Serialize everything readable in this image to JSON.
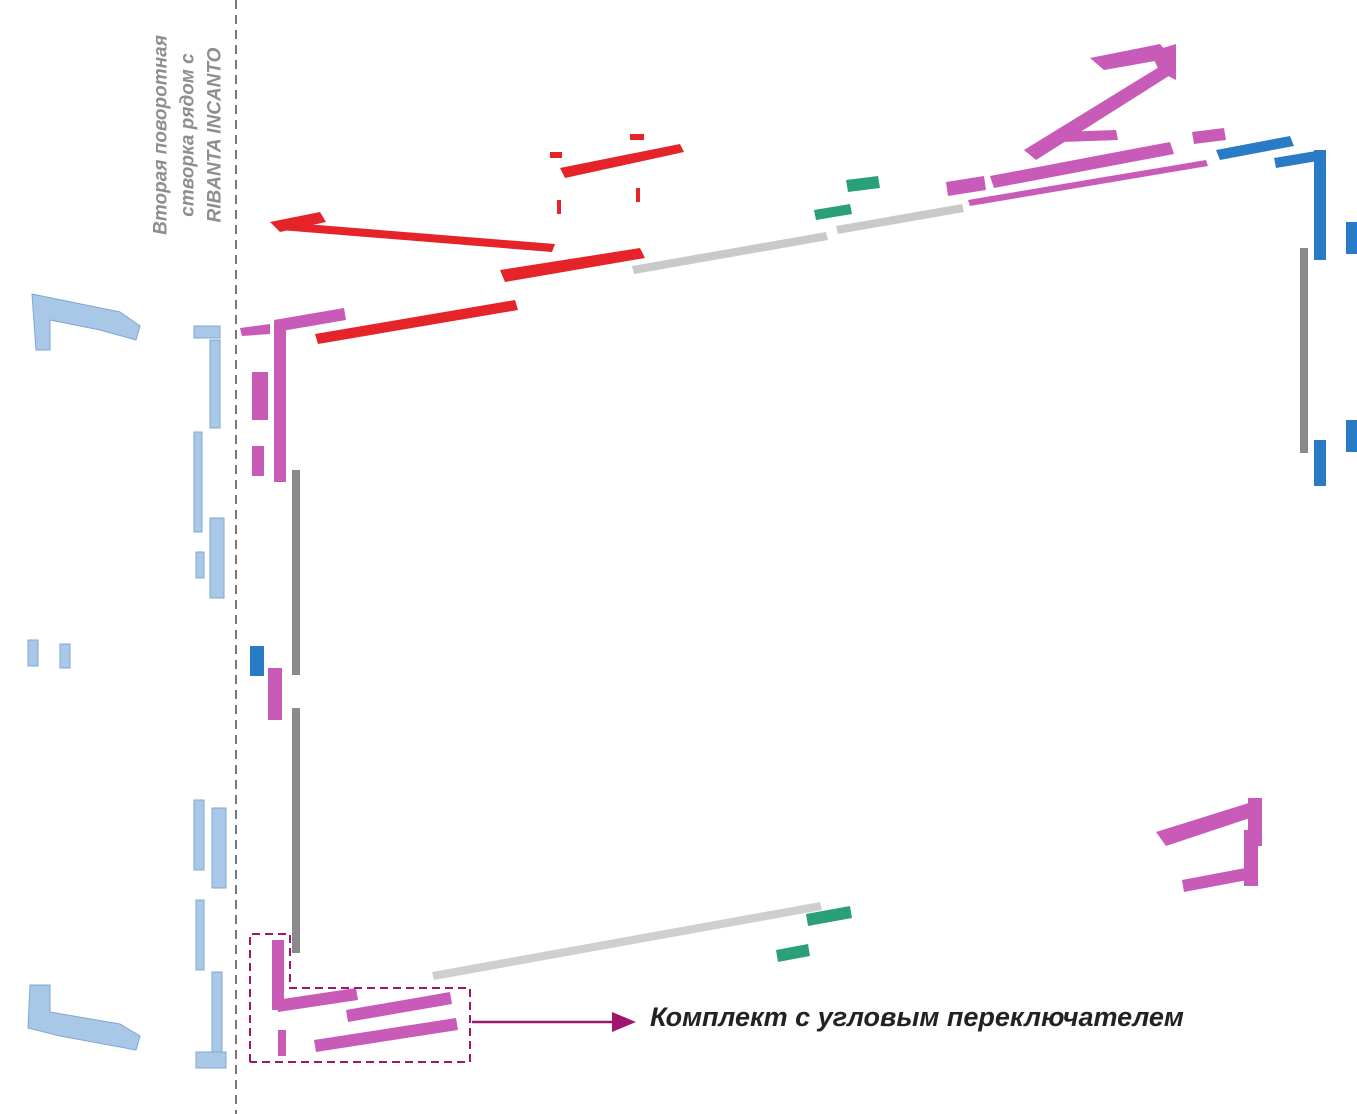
{
  "side_label": {
    "line1": "Вторая поворотная",
    "line2": "створка рядом с",
    "line3": "RIBANTA INCANTO"
  },
  "callout": {
    "text": "Комплект с угловым переключателем"
  },
  "colors": {
    "red": "#e5242a",
    "pink": "#c95bb8",
    "pink_dark": "#a83f98",
    "blue": "#2a7bc6",
    "light_blue": "#a9c7e6",
    "green": "#2aa07a",
    "gray": "#c9c9c9",
    "dark_gray": "#8a8a8a",
    "dashed_line": "#777777",
    "callout": "#a0166f"
  },
  "icons": {
    "arrow": "arrow-right-icon"
  }
}
